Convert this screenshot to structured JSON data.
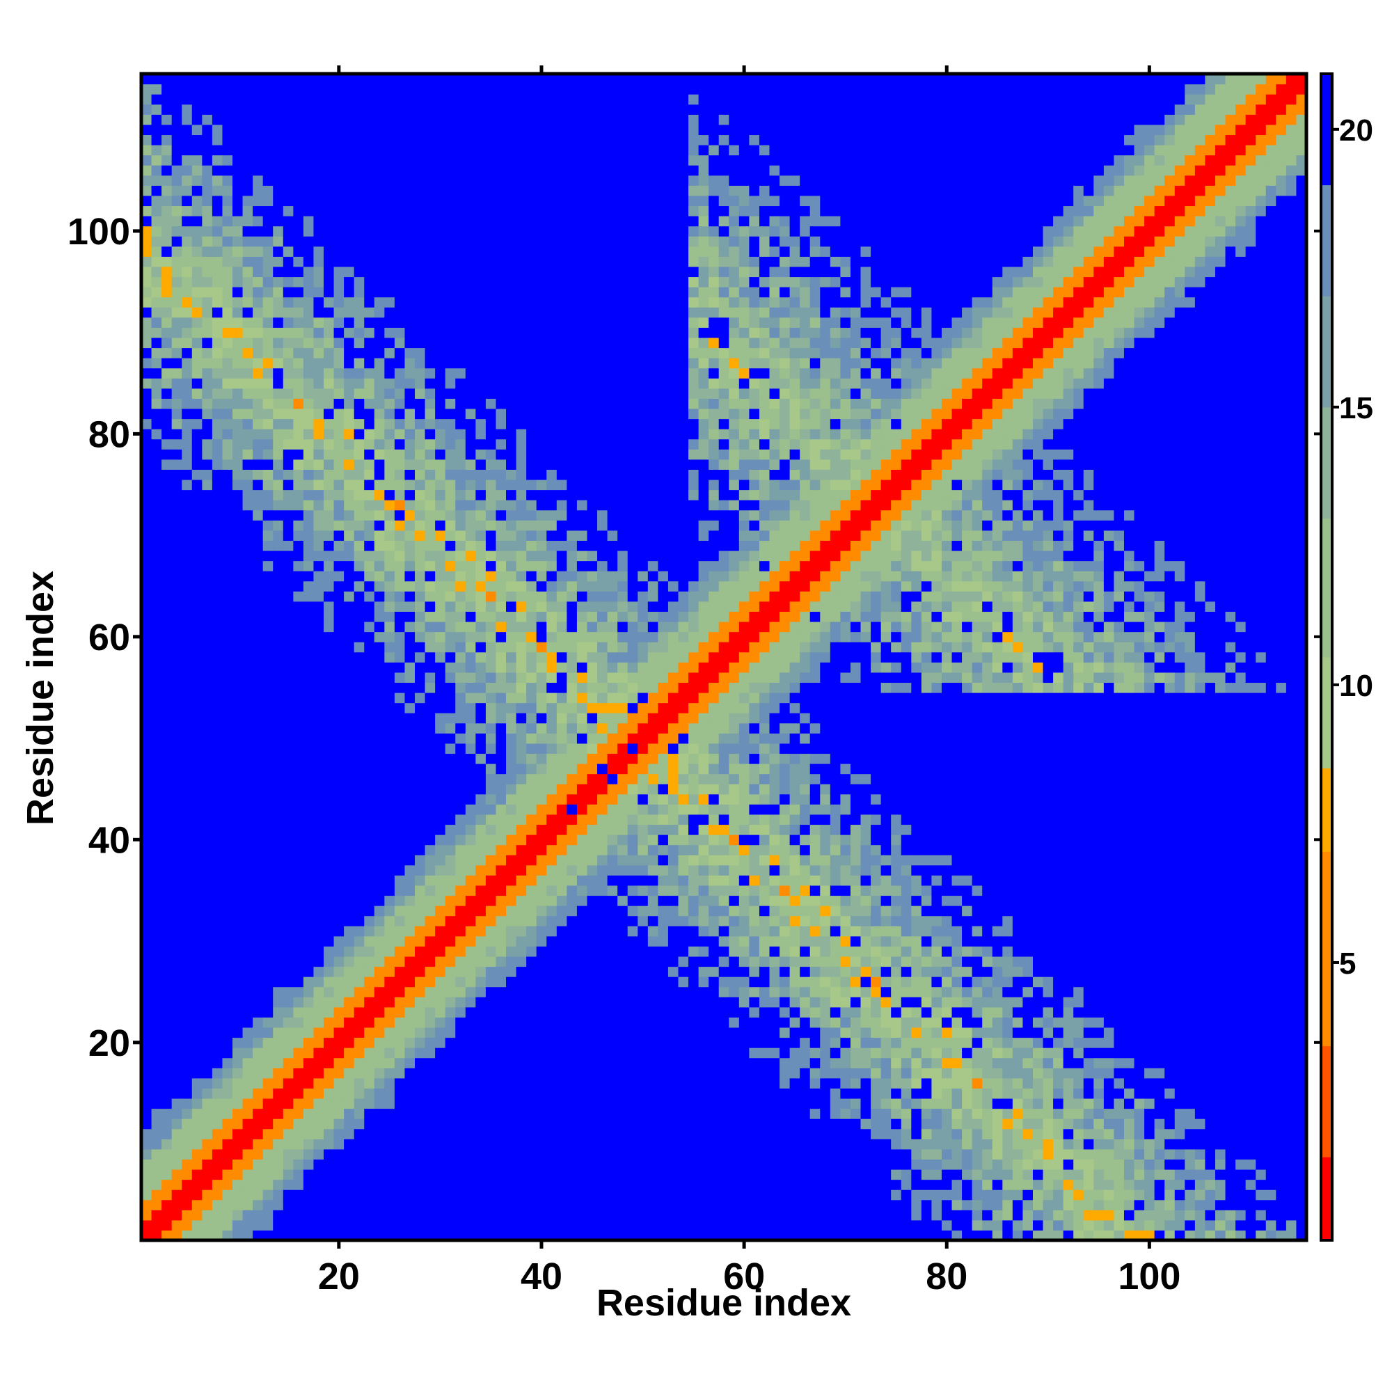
{
  "chart_data": {
    "type": "heatmap",
    "title": "",
    "xlabel": "Residue index",
    "ylabel": "Residue index",
    "n": 115,
    "xlim": [
      1,
      115
    ],
    "ylim": [
      1,
      115
    ],
    "xticks": [
      20,
      40,
      60,
      80,
      100
    ],
    "yticks": [
      20,
      40,
      60,
      80,
      100
    ],
    "colorbar": {
      "ticks": [
        5,
        10,
        15,
        20
      ],
      "range": [
        0,
        21
      ],
      "bins": [
        {
          "max": 1.5,
          "color": "#ff0000"
        },
        {
          "max": 3.5,
          "color": "#ff5500"
        },
        {
          "max": 7,
          "color": "#ff8c00"
        },
        {
          "max": 8.5,
          "color": "#ffaa00"
        },
        {
          "max": 10.5,
          "color": "#a8c88a"
        },
        {
          "max": 13,
          "color": "#9cbf8e"
        },
        {
          "max": 15,
          "color": "#8fb39a"
        },
        {
          "max": 17,
          "color": "#7aa0a8"
        },
        {
          "max": 19,
          "color": "#6a8fb8"
        },
        {
          "max": 21,
          "color": "#0000ff"
        }
      ]
    },
    "description_of_values": "Symmetric residue distance map; values small near the diagonal and inside two anti-diagonal contact bands, saturating at 21 elsewhere",
    "features": {
      "main_diagonal": {
        "core_width": 2,
        "orange_width": 4,
        "green_width": 11
      },
      "contact_bands": [
        {
          "anti_diagonal_sum": [
            78,
            120
          ],
          "residue_span": [
            1,
            60
          ]
        },
        {
          "anti_diagonal_sum": [
            120,
            170
          ],
          "residue_span": [
            60,
            115
          ]
        }
      ],
      "background_value": 21
    }
  }
}
